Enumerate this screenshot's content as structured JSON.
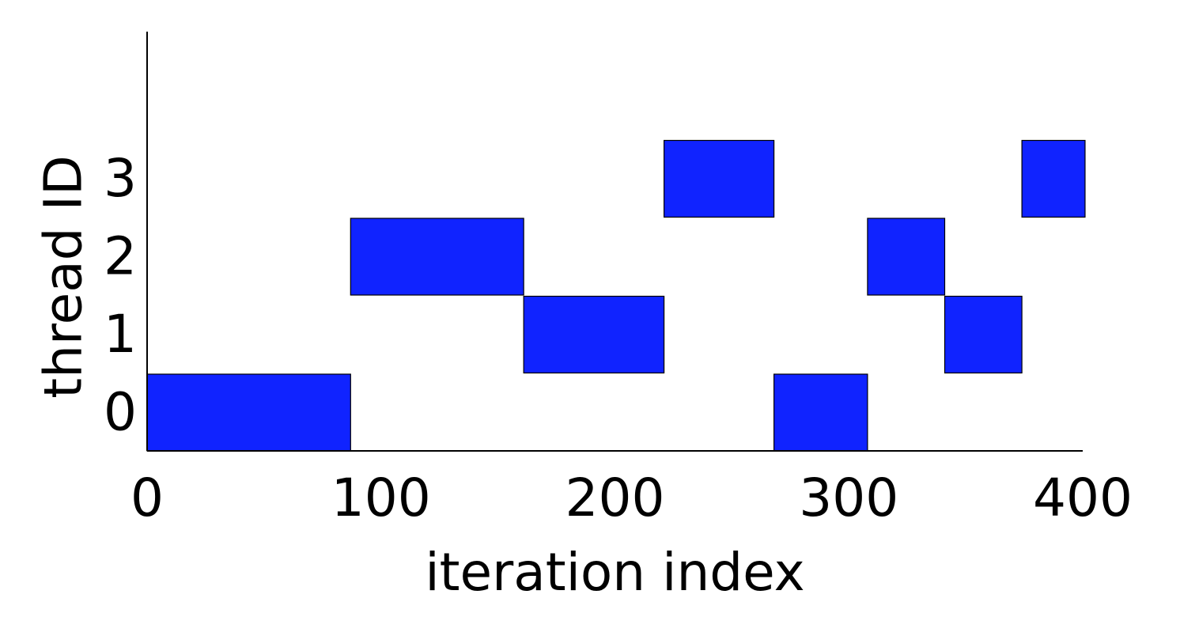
{
  "chart_data": {
    "type": "bar",
    "subtype": "gantt",
    "title": "",
    "xlabel": "iteration index",
    "ylabel": "thread ID",
    "xlim": [
      0,
      400
    ],
    "xticks": [
      0,
      100,
      200,
      300,
      400
    ],
    "yticks": [
      0,
      1,
      2,
      3
    ],
    "grid": false,
    "legend": "none",
    "bar_color": "#1023ff",
    "edge_color": "#000000",
    "segments": [
      {
        "thread": 0,
        "start": 0,
        "end": 87
      },
      {
        "thread": 2,
        "start": 87,
        "end": 161
      },
      {
        "thread": 1,
        "start": 161,
        "end": 221
      },
      {
        "thread": 3,
        "start": 221,
        "end": 268
      },
      {
        "thread": 0,
        "start": 268,
        "end": 308
      },
      {
        "thread": 2,
        "start": 308,
        "end": 341
      },
      {
        "thread": 1,
        "start": 341,
        "end": 374
      },
      {
        "thread": 3,
        "start": 374,
        "end": 401
      }
    ]
  }
}
